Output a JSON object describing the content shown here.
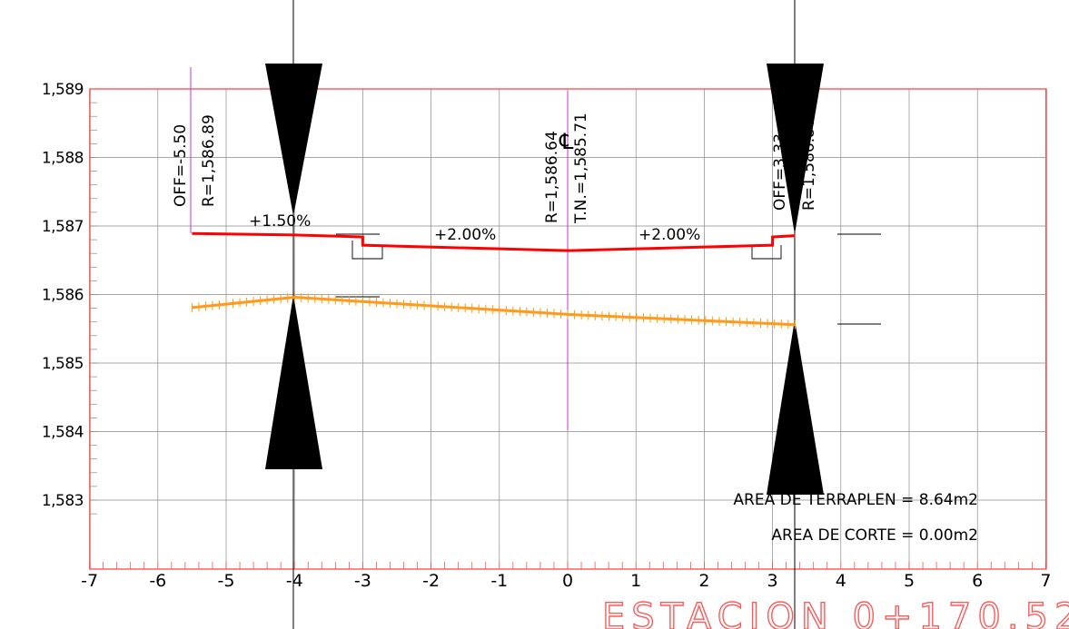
{
  "drawing": {
    "colors": {
      "frame": "#ff3b3b",
      "grid": "#8a8a8a",
      "rasante": "#ff0000",
      "terreno": "#ff9a1a",
      "centerline": "#cc33cc",
      "ink": "#000000"
    },
    "x_axis": {
      "ticks": [
        -7,
        -6,
        -5,
        -4,
        -3,
        -2,
        -1,
        0,
        1,
        2,
        3,
        4,
        5,
        6,
        7
      ],
      "labels": [
        "-7",
        "-6",
        "-5",
        "-4",
        "-3",
        "-2",
        "-1",
        "0",
        "1",
        "2",
        "3",
        "4",
        "5",
        "6",
        "7"
      ]
    },
    "y_axis": {
      "ticks": [
        1589,
        1588,
        1587,
        1586,
        1585,
        1584,
        1583
      ],
      "labels": [
        "1,589",
        "1,588",
        "1,587",
        "1,586",
        "1,585",
        "1,584",
        "1,583"
      ]
    },
    "left_edge": {
      "offset_label": "OFF=-5.50",
      "elev_label": "R=1,586.89"
    },
    "center": {
      "symbol": "℄",
      "rasante_label": "R=1,586.64",
      "terrain_label": "T.N.=1,585.71"
    },
    "right_edge": {
      "offset_label": "OFF=3.33",
      "elev_label": "R=1,586.86"
    },
    "slopes": {
      "left_shoulder": "+1.50%",
      "left_lane": "+2.00%",
      "right_lane": "+2.00%"
    },
    "areas": {
      "fill": "AREA DE TERRAPLEN = 8.64m2",
      "cut": "AREA DE CORTE = 0.00m2"
    },
    "station": "ESTACION 0+170.52",
    "rasante_points": [
      [
        -5.5,
        1586.89
      ],
      [
        -4.0,
        1586.87
      ],
      [
        -3.0,
        1586.84
      ],
      [
        -3.0,
        1586.72
      ],
      [
        0.0,
        1586.64
      ],
      [
        3.0,
        1586.72
      ],
      [
        3.0,
        1586.84
      ],
      [
        3.33,
        1586.86
      ]
    ],
    "terrain_points": [
      [
        -5.5,
        1585.81
      ],
      [
        -4.0,
        1585.96
      ],
      [
        0.0,
        1585.71
      ],
      [
        3.33,
        1585.56
      ]
    ]
  }
}
